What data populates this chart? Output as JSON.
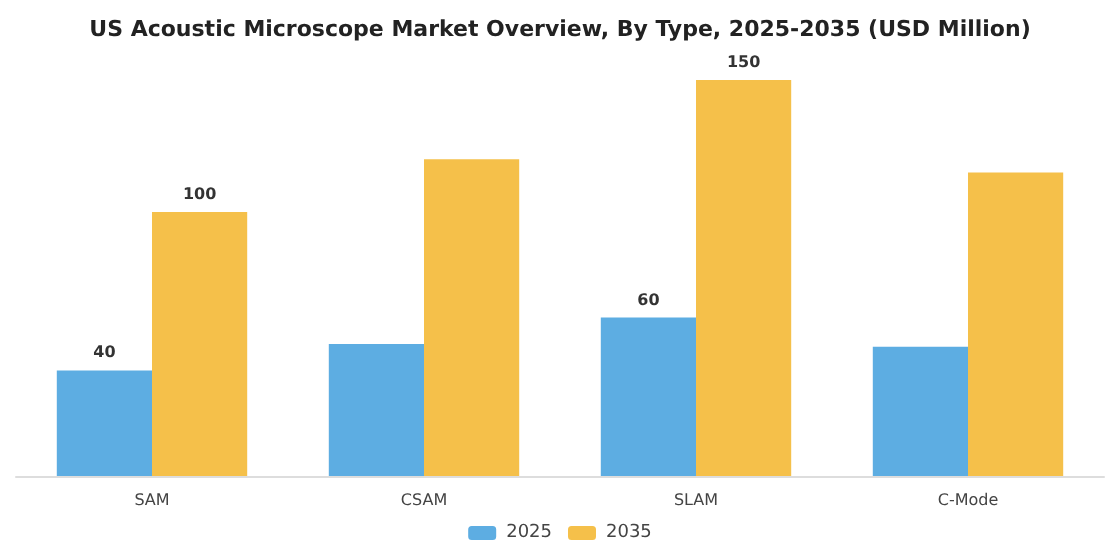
{
  "chart_data": {
    "type": "bar",
    "title": "US Acoustic Microscope Market Overview, By Type, 2025-2035 (USD Million)",
    "categories": [
      "SAM",
      "CSAM",
      "SLAM",
      "C-Mode"
    ],
    "series": [
      {
        "name": "2025",
        "color": "#5dade2",
        "values": [
          40,
          50,
          60,
          49
        ],
        "value_labels": [
          "40",
          null,
          "60",
          null
        ]
      },
      {
        "name": "2035",
        "color": "#f5c04a",
        "values": [
          100,
          120,
          150,
          115
        ],
        "value_labels": [
          "100",
          null,
          "150",
          null
        ]
      }
    ],
    "legend": "bottom"
  }
}
